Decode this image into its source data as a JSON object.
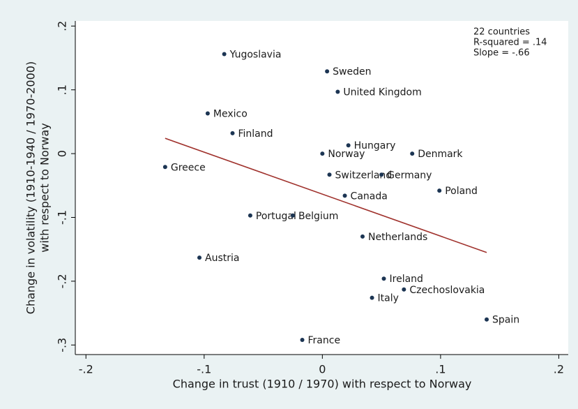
{
  "chart_data": {
    "type": "scatter",
    "x_label": "Change in trust (1910 / 1970) with respect to Norway",
    "y_label": [
      "Change in volatility (1910-1940 / 1970-2000)",
      "with respect to Norway"
    ],
    "annotations": [
      "22 countries",
      "R-squared = .14",
      "Slope = -.66"
    ],
    "xlim": [
      -0.209,
      0.208
    ],
    "ylim": [
      -0.315,
      0.208
    ],
    "xticks": [
      {
        "value": -0.2,
        "label": "-.2"
      },
      {
        "value": -0.1,
        "label": "-.1"
      },
      0,
      {
        "value": 0.1,
        "label": ".1"
      },
      {
        "value": 0.2,
        "label": ".2"
      }
    ],
    "yticks": [
      {
        "value": -0.3,
        "label": "-.3"
      },
      {
        "value": -0.2,
        "label": "-.2"
      },
      {
        "value": -0.1,
        "label": "-.1"
      },
      0,
      {
        "value": 0.1,
        "label": ".1"
      },
      {
        "value": 0.2,
        "label": ".2"
      }
    ],
    "series": [
      {
        "color": "#1c3553",
        "labels": [
          "Yugoslavia",
          "Sweden",
          "United Kingdom",
          "Mexico",
          "Finland",
          "Hungary",
          "Norway",
          "Denmark",
          "Greece",
          "Switzerland",
          "Germany",
          "Poland",
          "Canada",
          "Portugal",
          "Belgium",
          "Netherlands",
          "Austria",
          "Ireland",
          "Czechoslovakia",
          "Italy",
          "Spain",
          "France"
        ],
        "x": [
          -0.083,
          0.004,
          0.013,
          -0.097,
          -0.076,
          0.022,
          0,
          0.076,
          -0.133,
          0.006,
          0.05,
          0.099,
          0.019,
          -0.061,
          -0.025,
          0.034,
          -0.104,
          0.052,
          0.069,
          0.042,
          0.139,
          -0.017
        ],
        "values": [
          0.156,
          0.129,
          0.097,
          0.063,
          0.032,
          0.013,
          0,
          0,
          -0.021,
          -0.033,
          -0.033,
          -0.058,
          -0.066,
          -0.097,
          -0.097,
          -0.13,
          -0.163,
          -0.196,
          -0.213,
          -0.226,
          -0.26,
          -0.292
        ]
      }
    ],
    "fit_line": {
      "color": "#a0322d",
      "x": [
        -0.133,
        0.139
      ],
      "values": [
        0.024,
        -0.155
      ]
    }
  }
}
